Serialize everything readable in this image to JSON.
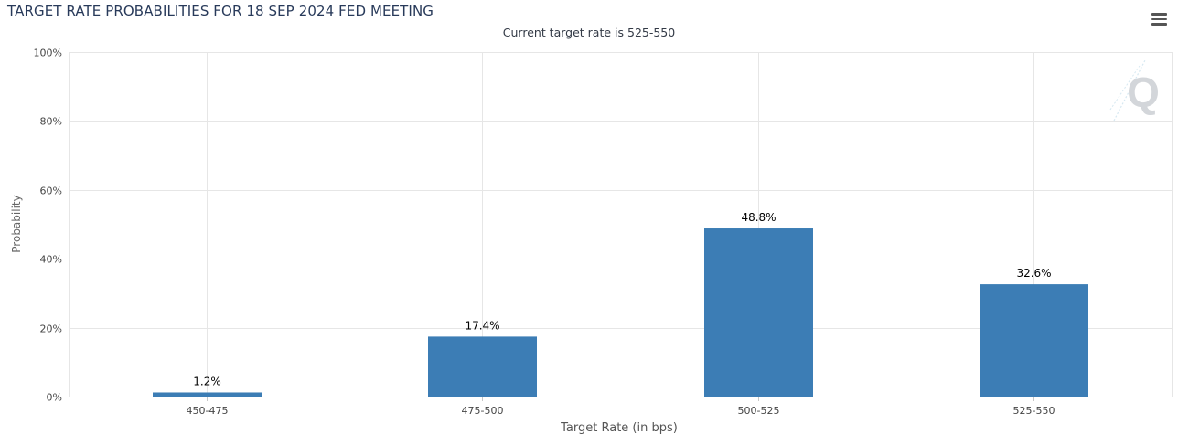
{
  "title": "TARGET RATE PROBABILITIES FOR 18 SEP 2024 FED MEETING",
  "subtitle": "Current target rate is 525-550",
  "menu_icon": "hamburger-menu-icon",
  "watermark_icon": "q-logo-icon",
  "colors": {
    "bar": "#3c7db5",
    "grid": "#e6e6e6",
    "axis": "#c7c7c7",
    "title": "#283a5a"
  },
  "chart_data": {
    "type": "bar",
    "title": "TARGET RATE PROBABILITIES FOR 18 SEP 2024 FED MEETING",
    "subtitle": "Current target rate is 525-550",
    "xlabel": "Target Rate (in bps)",
    "ylabel": "Probability",
    "categories": [
      "450-475",
      "475-500",
      "500-525",
      "525-550"
    ],
    "values": [
      1.2,
      17.4,
      48.8,
      32.6
    ],
    "value_labels": [
      "1.2%",
      "17.4%",
      "48.8%",
      "32.6%"
    ],
    "ylim": [
      0,
      100
    ],
    "yticks": [
      0,
      20,
      40,
      60,
      80,
      100
    ],
    "ytick_labels": [
      "0%",
      "20%",
      "40%",
      "60%",
      "80%",
      "100%"
    ],
    "grid": true,
    "legend": "none"
  }
}
